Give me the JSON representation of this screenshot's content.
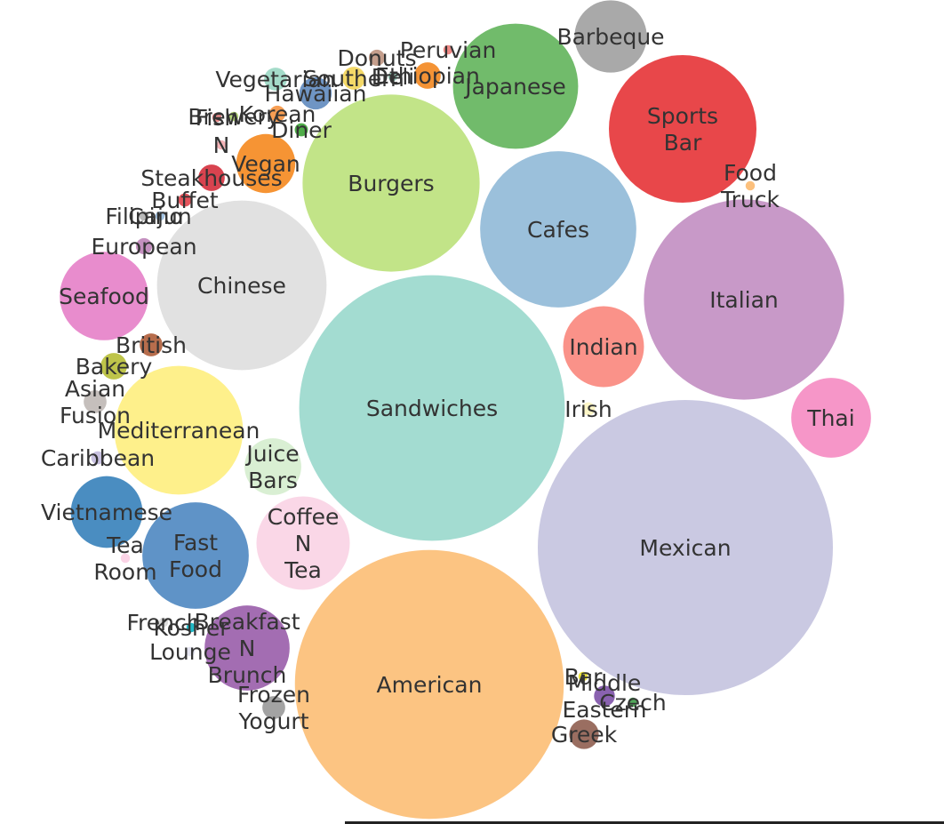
{
  "chart_data": {
    "type": "bubble",
    "title": "",
    "categories": [
      {
        "name": "Mexican",
        "lines": [
          "Mexican"
        ],
        "value": 100,
        "color": "#cac9e2"
      },
      {
        "name": "Sandwiches",
        "lines": [
          "Sandwiches"
        ],
        "value": 81,
        "color": "#a3dcd1"
      },
      {
        "name": "American",
        "lines": [
          "American"
        ],
        "value": 83,
        "color": "#fcc482"
      },
      {
        "name": "Italian",
        "lines": [
          "Italian"
        ],
        "value": 46,
        "color": "#c899c8"
      },
      {
        "name": "Burgers",
        "lines": [
          "Burgers"
        ],
        "value": 36,
        "color": "#c2e488"
      },
      {
        "name": "Chinese",
        "lines": [
          "Chinese"
        ],
        "value": 33,
        "color": "#e1e1e1"
      },
      {
        "name": "Cafes",
        "lines": [
          "Cafes"
        ],
        "value": 28,
        "color": "#9bc0db"
      },
      {
        "name": "Sports Bar",
        "lines": [
          "Sports",
          "Bar"
        ],
        "value": 25,
        "color": "#e8474a"
      },
      {
        "name": "Japanese",
        "lines": [
          "Japanese"
        ],
        "value": 18,
        "color": "#71bb6b"
      },
      {
        "name": "Mediterranean",
        "lines": [
          "Mediterranean"
        ],
        "value": 19,
        "color": "#fef08b"
      },
      {
        "name": "Fast Food",
        "lines": [
          "Fast",
          "Food"
        ],
        "value": 13,
        "color": "#5f93c7"
      },
      {
        "name": "Coffee N Tea",
        "lines": [
          "Coffee",
          "N",
          "Tea"
        ],
        "value": 10,
        "color": "#fad7e7"
      },
      {
        "name": "Seafood",
        "lines": [
          "Seafood"
        ],
        "value": 9,
        "color": "#e88ccd"
      },
      {
        "name": "Indian",
        "lines": [
          "Indian"
        ],
        "value": 7.5,
        "color": "#fa9289"
      },
      {
        "name": "Breakfast N Brunch",
        "lines": [
          "Breakfast",
          "N",
          "Brunch"
        ],
        "value": 8.3,
        "color": "#a36db2"
      },
      {
        "name": "Thai",
        "lines": [
          "Thai"
        ],
        "value": 7.3,
        "color": "#f696c8"
      },
      {
        "name": "Vietnamese",
        "lines": [
          "Vietnamese"
        ],
        "value": 5.9,
        "color": "#4a8dc1"
      },
      {
        "name": "Vegan",
        "lines": [
          "Vegan"
        ],
        "value": 4,
        "color": "#f69434"
      },
      {
        "name": "Juice Bars",
        "lines": [
          "Juice",
          "Bars"
        ],
        "value": 3.7,
        "color": "#d9efd3"
      },
      {
        "name": "Barbeque",
        "lines": [
          "Barbeque"
        ],
        "value": 6,
        "color": "#a9a9a9"
      },
      {
        "name": "Hawaiian",
        "lines": [
          "Hawaiian"
        ],
        "value": 1.2,
        "color": "#6f95c4"
      },
      {
        "name": "Greek",
        "lines": [
          "Greek"
        ],
        "value": 1.0,
        "color": "#9a6e61"
      },
      {
        "name": "Steakhouses",
        "lines": [
          "Steakhouses"
        ],
        "value": 0.8,
        "color": "#d8434f"
      },
      {
        "name": "British",
        "lines": [
          "British"
        ],
        "value": 0.6,
        "color": "#b76d4c"
      },
      {
        "name": "Bakery",
        "lines": [
          "Bakery"
        ],
        "value": 0.8,
        "color": "#bec44a"
      },
      {
        "name": "Frozen Yogurt",
        "lines": [
          "Frozen",
          "Yogurt"
        ],
        "value": 0.6,
        "color": "#a3a3a3"
      },
      {
        "name": "Asian Fusion",
        "lines": [
          "Asian",
          "Fusion"
        ],
        "value": 0.6,
        "color": "#c5bfbc"
      },
      {
        "name": "Ethiopian",
        "lines": [
          "Ethiopian"
        ],
        "value": 0.8,
        "color": "#f49335"
      },
      {
        "name": "Vegetarian",
        "lines": [
          "Vegetarian"
        ],
        "value": 0.6,
        "color": "#a4dbc9"
      },
      {
        "name": "Southern",
        "lines": [
          "Southern"
        ],
        "value": 0.6,
        "color": "#f4d968"
      },
      {
        "name": "Middle Eastern",
        "lines": [
          "Middle",
          "Eastern"
        ],
        "value": 0.5,
        "color": "#8a62b0"
      },
      {
        "name": "European",
        "lines": [
          "European"
        ],
        "value": 0.3,
        "color": "#c490bf"
      },
      {
        "name": "Korean",
        "lines": [
          "Korean"
        ],
        "value": 0.3,
        "color": "#f79e53"
      },
      {
        "name": "Donuts",
        "lines": [
          "Donuts"
        ],
        "value": 0.3,
        "color": "#c49e8c"
      },
      {
        "name": "Buffet",
        "lines": [
          "Buffet"
        ],
        "value": 0.2,
        "color": "#e5545c"
      },
      {
        "name": "Caribbean",
        "lines": [
          "Caribbean"
        ],
        "value": 0.2,
        "color": "#c8c1e0"
      },
      {
        "name": "Diner",
        "lines": [
          "Diner"
        ],
        "value": 0.2,
        "color": "#4fad49"
      },
      {
        "name": "Food Truck",
        "lines": [
          "Food",
          "Truck"
        ],
        "value": 0.1,
        "color": "#fcc07d"
      },
      {
        "name": "Irish",
        "lines": [
          "Irish"
        ],
        "value": 0.2,
        "color": "#fdf6c7"
      },
      {
        "name": "Kosher",
        "lines": [
          "Kosher"
        ],
        "value": 0.1,
        "color": "#20b9c6"
      },
      {
        "name": "Peruvian",
        "lines": [
          "Peruvian"
        ],
        "value": 0.1,
        "color": "#f08a86"
      },
      {
        "name": "Deli",
        "lines": [
          "Deli"
        ],
        "value": 0.1,
        "color": "#9ed2c0"
      },
      {
        "name": "Filipino",
        "lines": [
          "Filipino"
        ],
        "value": 0.1,
        "color": "#b9b9b9"
      },
      {
        "name": "Cajun",
        "lines": [
          "Cajun"
        ],
        "value": 0.1,
        "color": "#a3c4e4"
      },
      {
        "name": "Czech",
        "lines": [
          "Czech"
        ],
        "value": 0.1,
        "color": "#52a85b"
      },
      {
        "name": "Bar",
        "lines": [
          "Bar"
        ],
        "value": 0.1,
        "color": "#e9e23b"
      },
      {
        "name": "Tea Room",
        "lines": [
          "Tea",
          "Room"
        ],
        "value": 0.1,
        "color": "#fbd4e6"
      },
      {
        "name": "French",
        "lines": [
          "French"
        ],
        "value": 0.1,
        "color": "#dcdcdc"
      },
      {
        "name": "Lounge",
        "lines": [
          "Lounge"
        ],
        "value": 0.1,
        "color": "#e6e6f2"
      },
      {
        "name": "Brewery",
        "lines": [
          "Brewery"
        ],
        "value": 0.1,
        "color": "#b5d77a"
      },
      {
        "name": "Fish",
        "lines": [
          "Fish"
        ],
        "value": 0.1,
        "color": "#e88a8a"
      },
      {
        "name": "N",
        "lines": [
          "N"
        ],
        "value": 0.1,
        "color": "#f5b4b8"
      }
    ]
  }
}
